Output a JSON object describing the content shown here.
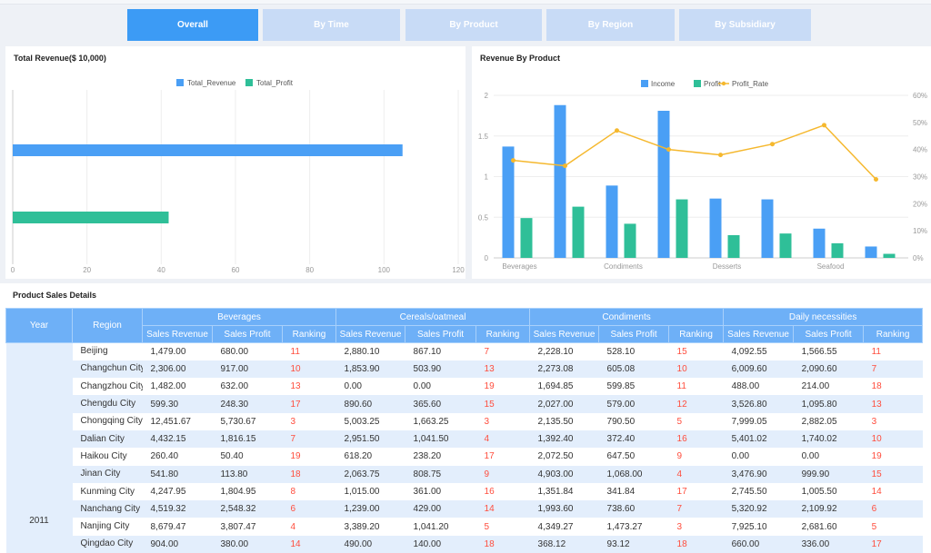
{
  "tabs": [
    {
      "label": "Overall"
    },
    {
      "label": "By Time"
    },
    {
      "label": "By Product"
    },
    {
      "label": "By Region"
    },
    {
      "label": "By Subsidiary"
    }
  ],
  "revenue_panel": {
    "title": "Total Revenue($ 10,000)"
  },
  "product_panel": {
    "title": "Revenue By Product"
  },
  "table_panel": {
    "title": "Product Sales Details"
  },
  "colors": {
    "blue": "#4a9ff5",
    "green": "#2fbf98",
    "orange": "#f5b82e",
    "header": "#6eb0f7",
    "rank": "#ff4d3d"
  },
  "chart_data": [
    {
      "type": "bar",
      "orientation": "horizontal",
      "title": "Total Revenue($ 10,000)",
      "series": [
        {
          "name": "Total_Revenue",
          "values": [
            105
          ]
        },
        {
          "name": "Total_Profit",
          "values": [
            42
          ]
        }
      ],
      "xlim": [
        0,
        120
      ],
      "xticks": [
        0,
        20,
        40,
        60,
        80,
        100,
        120
      ],
      "legend": "top-center",
      "grid": true
    },
    {
      "type": "bar",
      "title": "Revenue By Product",
      "categories": [
        "Beverages",
        "",
        "Condiments",
        "",
        "Desserts",
        "",
        "Seafood",
        ""
      ],
      "series": [
        {
          "name": "Income",
          "type": "bar",
          "axis": "left",
          "values": [
            1.37,
            1.88,
            0.89,
            1.81,
            0.73,
            0.72,
            0.36,
            0.14
          ]
        },
        {
          "name": "Profit",
          "type": "bar",
          "axis": "left",
          "values": [
            0.49,
            0.63,
            0.42,
            0.72,
            0.28,
            0.3,
            0.18,
            0.05
          ]
        },
        {
          "name": "Profit_Rate",
          "type": "line",
          "axis": "right",
          "values": [
            36,
            34,
            47,
            40,
            38,
            42,
            49,
            29
          ]
        }
      ],
      "ylim": [
        0,
        2
      ],
      "yticks": [
        "0",
        "0.5",
        "1",
        "1.5",
        "2"
      ],
      "y2lim": [
        0,
        60
      ],
      "y2ticks": [
        "0%",
        "10%",
        "20%",
        "30%",
        "40%",
        "50%",
        "60%"
      ],
      "legend": "top-center",
      "grid": true
    }
  ],
  "table": {
    "year_header": "Year",
    "region_header": "Region",
    "groups": [
      "Beverages",
      "Cereals/oatmeal",
      "Condiments",
      "Daily necessities"
    ],
    "sub_headers": [
      "Sales Revenue",
      "Sales Profit",
      "Ranking"
    ],
    "year": "2011",
    "rows": [
      {
        "region": "Beijing",
        "cells": [
          "1,479.00",
          "680.00",
          "11",
          "2,880.10",
          "867.10",
          "7",
          "2,228.10",
          "528.10",
          "15",
          "4,092.55",
          "1,566.55",
          "11"
        ]
      },
      {
        "region": "Changchun City",
        "cells": [
          "2,306.00",
          "917.00",
          "10",
          "1,853.90",
          "503.90",
          "13",
          "2,273.08",
          "605.08",
          "10",
          "6,009.60",
          "2,090.60",
          "7"
        ]
      },
      {
        "region": "Changzhou City",
        "cells": [
          "1,482.00",
          "632.00",
          "13",
          "0.00",
          "0.00",
          "19",
          "1,694.85",
          "599.85",
          "11",
          "488.00",
          "214.00",
          "18"
        ]
      },
      {
        "region": "Chengdu City",
        "cells": [
          "599.30",
          "248.30",
          "17",
          "890.60",
          "365.60",
          "15",
          "2,027.00",
          "579.00",
          "12",
          "3,526.80",
          "1,095.80",
          "13"
        ]
      },
      {
        "region": "Chongqing City",
        "cells": [
          "12,451.67",
          "5,730.67",
          "3",
          "5,003.25",
          "1,663.25",
          "3",
          "2,135.50",
          "790.50",
          "5",
          "7,999.05",
          "2,882.05",
          "3"
        ]
      },
      {
        "region": "Dalian City",
        "cells": [
          "4,432.15",
          "1,816.15",
          "7",
          "2,951.50",
          "1,041.50",
          "4",
          "1,392.40",
          "372.40",
          "16",
          "5,401.02",
          "1,740.02",
          "10"
        ]
      },
      {
        "region": "Haikou City",
        "cells": [
          "260.40",
          "50.40",
          "19",
          "618.20",
          "238.20",
          "17",
          "2,072.50",
          "647.50",
          "9",
          "0.00",
          "0.00",
          "19"
        ]
      },
      {
        "region": "Jinan City",
        "cells": [
          "541.80",
          "113.80",
          "18",
          "2,063.75",
          "808.75",
          "9",
          "4,903.00",
          "1,068.00",
          "4",
          "3,476.90",
          "999.90",
          "15"
        ]
      },
      {
        "region": "Kunming City",
        "cells": [
          "4,247.95",
          "1,804.95",
          "8",
          "1,015.00",
          "361.00",
          "16",
          "1,351.84",
          "341.84",
          "17",
          "2,745.50",
          "1,005.50",
          "14"
        ]
      },
      {
        "region": "Nanchang City",
        "cells": [
          "4,519.32",
          "2,548.32",
          "6",
          "1,239.00",
          "429.00",
          "14",
          "1,993.60",
          "738.60",
          "7",
          "5,320.92",
          "2,109.92",
          "6"
        ]
      },
      {
        "region": "Nanjing City",
        "cells": [
          "8,679.47",
          "3,807.47",
          "4",
          "3,389.20",
          "1,041.20",
          "5",
          "4,349.27",
          "1,473.27",
          "3",
          "7,925.10",
          "2,681.60",
          "5"
        ]
      },
      {
        "region": "Qingdao City",
        "cells": [
          "904.00",
          "380.00",
          "14",
          "490.00",
          "140.00",
          "18",
          "368.12",
          "93.12",
          "18",
          "660.00",
          "336.00",
          "17"
        ]
      }
    ]
  }
}
